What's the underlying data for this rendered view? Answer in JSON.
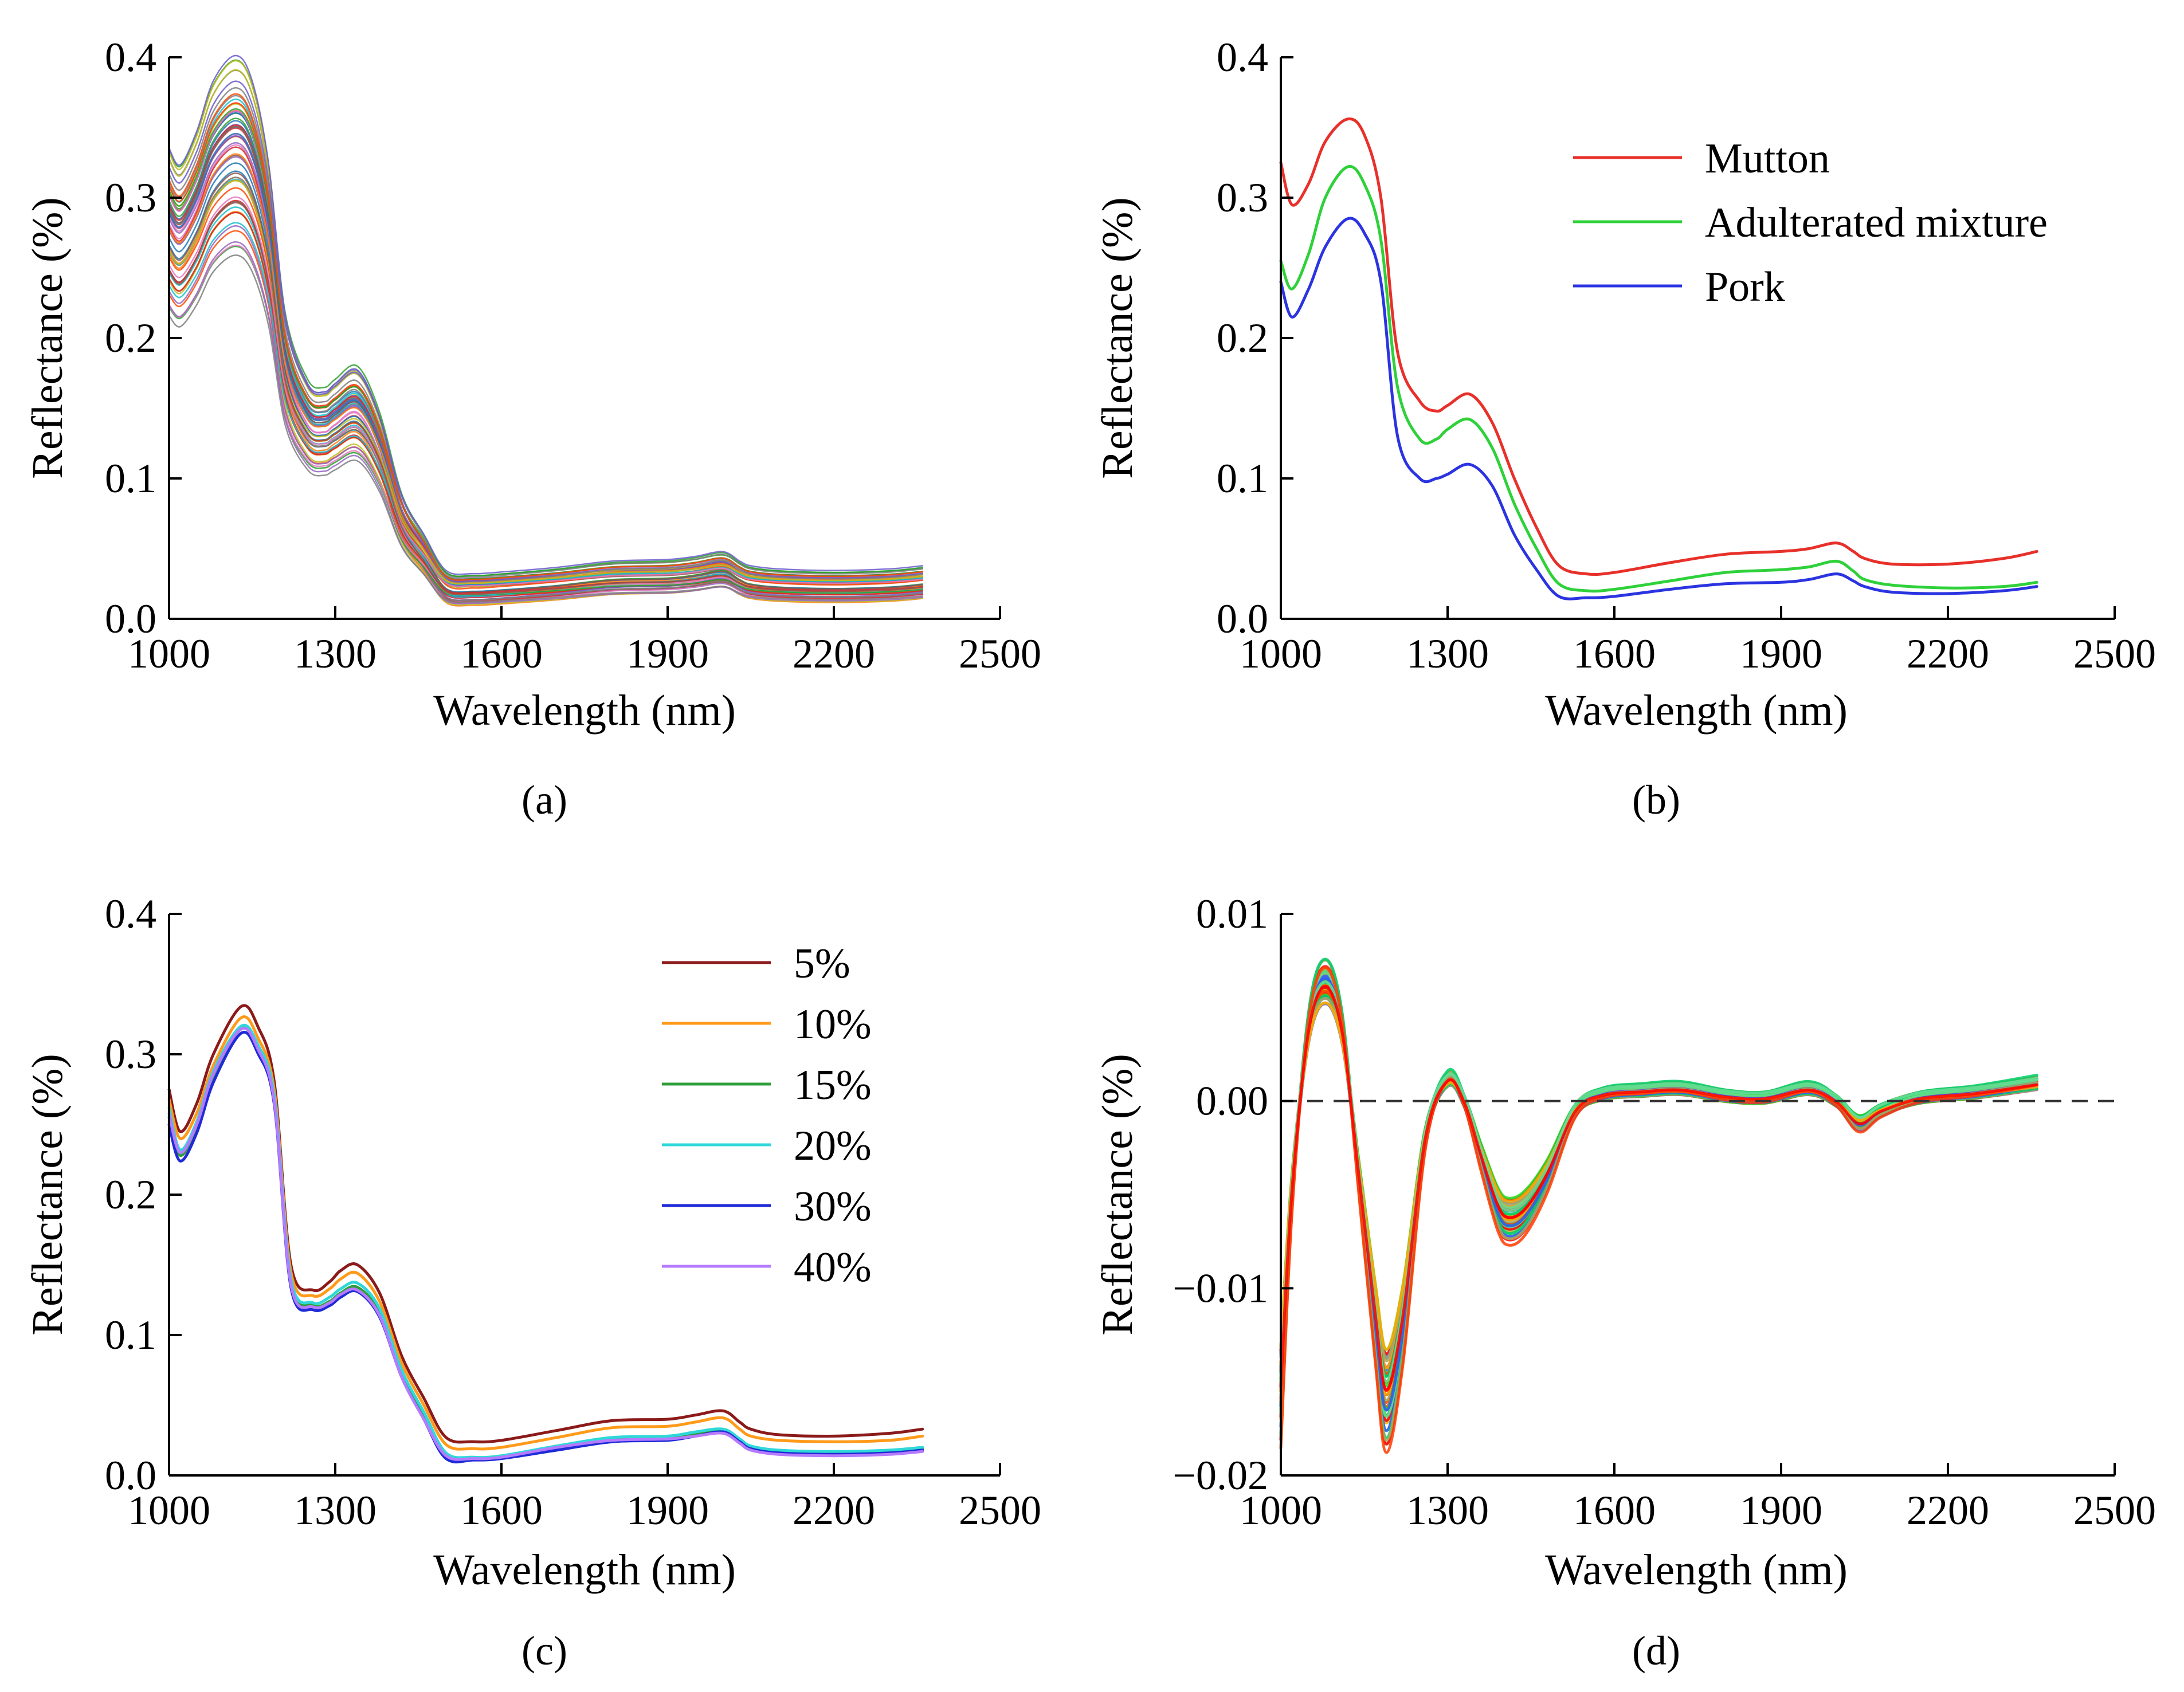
{
  "chart_data": [
    {
      "panel": "a",
      "type": "line",
      "caption": "(a)",
      "xlabel": "Wavelength (nm)",
      "ylabel": "Reflectance (%)",
      "xlim": [
        1000,
        2500
      ],
      "ylim": [
        0.0,
        0.4
      ],
      "xticks": [
        "1000",
        "1300",
        "1600",
        "1900",
        "2200",
        "2500"
      ],
      "yticks": [
        "0.0",
        "0.1",
        "0.2",
        "0.3",
        "0.4"
      ],
      "grid": false,
      "legend": "none",
      "description_colors": [
        "#d62728",
        "#2ca02c",
        "#1f77b4",
        "#17becf",
        "#9467bd",
        "#ff7f0e",
        "#bcbd22",
        "#e377c2",
        "#8c564b",
        "#7f7f7f",
        "#ff4500",
        "#6a5acd"
      ],
      "template": {
        "x": [
          1000,
          1020,
          1050,
          1080,
          1120,
          1150,
          1180,
          1210,
          1250,
          1280,
          1300,
          1340,
          1380,
          1420,
          1460,
          1500,
          1550,
          1600,
          1700,
          1800,
          1900,
          1950,
          2000,
          2030,
          2050,
          2100,
          2200,
          2300,
          2360
        ],
        "y": [
          0.28,
          0.27,
          0.29,
          0.32,
          0.335,
          0.32,
          0.27,
          0.18,
          0.14,
          0.135,
          0.14,
          0.148,
          0.12,
          0.07,
          0.045,
          0.022,
          0.02,
          0.021,
          0.024,
          0.028,
          0.029,
          0.031,
          0.034,
          0.028,
          0.025,
          0.023,
          0.022,
          0.023,
          0.025
        ]
      },
      "series_count": 60,
      "ensemble": "overlaid spectra of individual samples"
    },
    {
      "panel": "b",
      "type": "line",
      "caption": "(b)",
      "xlabel": "Wavelength (nm)",
      "ylabel": "Reflectance (%)",
      "xlim": [
        1000,
        2500
      ],
      "ylim": [
        0.0,
        0.4
      ],
      "xticks": [
        "1000",
        "1300",
        "1600",
        "1900",
        "2200",
        "2500"
      ],
      "yticks": [
        "0.0",
        "0.1",
        "0.2",
        "0.3",
        "0.4"
      ],
      "grid": false,
      "legend": "top-right",
      "x": [
        1000,
        1020,
        1050,
        1080,
        1120,
        1150,
        1180,
        1210,
        1250,
        1280,
        1300,
        1340,
        1380,
        1420,
        1460,
        1500,
        1550,
        1600,
        1700,
        1800,
        1900,
        1950,
        2000,
        2030,
        2050,
        2100,
        2200,
        2300,
        2360
      ],
      "series": [
        {
          "name": "Mutton",
          "color": "#e8302a",
          "values": [
            0.325,
            0.295,
            0.31,
            0.34,
            0.356,
            0.345,
            0.3,
            0.19,
            0.155,
            0.148,
            0.152,
            0.16,
            0.14,
            0.1,
            0.065,
            0.038,
            0.032,
            0.033,
            0.04,
            0.046,
            0.048,
            0.05,
            0.054,
            0.048,
            0.043,
            0.039,
            0.039,
            0.043,
            0.048
          ]
        },
        {
          "name": "Adulterated mixture",
          "color": "#2fd13a",
          "values": [
            0.255,
            0.235,
            0.26,
            0.3,
            0.322,
            0.31,
            0.27,
            0.165,
            0.128,
            0.128,
            0.135,
            0.142,
            0.122,
            0.082,
            0.05,
            0.025,
            0.02,
            0.021,
            0.027,
            0.033,
            0.035,
            0.037,
            0.041,
            0.034,
            0.028,
            0.024,
            0.022,
            0.023,
            0.026
          ]
        },
        {
          "name": "Pork",
          "color": "#2b34e0",
          "values": [
            0.24,
            0.215,
            0.235,
            0.265,
            0.285,
            0.275,
            0.24,
            0.13,
            0.1,
            0.1,
            0.103,
            0.11,
            0.095,
            0.06,
            0.035,
            0.016,
            0.015,
            0.016,
            0.021,
            0.025,
            0.026,
            0.028,
            0.032,
            0.027,
            0.023,
            0.019,
            0.018,
            0.02,
            0.023
          ]
        }
      ]
    },
    {
      "panel": "c",
      "type": "line",
      "caption": "(c)",
      "xlabel": "Wavelength (nm)",
      "ylabel": "Reflectance (%)",
      "xlim": [
        1000,
        2500
      ],
      "ylim": [
        0.0,
        0.4
      ],
      "xticks": [
        "1000",
        "1300",
        "1600",
        "1900",
        "2200",
        "2500"
      ],
      "yticks": [
        "0.0",
        "0.1",
        "0.2",
        "0.3",
        "0.4"
      ],
      "grid": false,
      "legend": "top-right",
      "x": [
        1000,
        1020,
        1050,
        1080,
        1130,
        1160,
        1190,
        1220,
        1260,
        1290,
        1310,
        1340,
        1380,
        1420,
        1460,
        1500,
        1550,
        1600,
        1700,
        1800,
        1900,
        1950,
        2000,
        2030,
        2050,
        2100,
        2200,
        2300,
        2360
      ],
      "series": [
        {
          "name": "5%",
          "color": "#8b1a1a",
          "values": [
            0.275,
            0.245,
            0.265,
            0.3,
            0.334,
            0.32,
            0.28,
            0.15,
            0.132,
            0.138,
            0.146,
            0.15,
            0.13,
            0.085,
            0.055,
            0.027,
            0.024,
            0.025,
            0.032,
            0.039,
            0.04,
            0.043,
            0.046,
            0.038,
            0.033,
            0.029,
            0.028,
            0.03,
            0.033
          ]
        },
        {
          "name": "10%",
          "color": "#ff9a1a",
          "values": [
            0.268,
            0.24,
            0.258,
            0.292,
            0.326,
            0.312,
            0.274,
            0.145,
            0.128,
            0.133,
            0.14,
            0.144,
            0.124,
            0.08,
            0.05,
            0.022,
            0.019,
            0.02,
            0.027,
            0.034,
            0.035,
            0.038,
            0.041,
            0.033,
            0.028,
            0.025,
            0.024,
            0.025,
            0.028
          ]
        },
        {
          "name": "15%",
          "color": "#2e9e3a",
          "values": [
            0.255,
            0.228,
            0.248,
            0.285,
            0.318,
            0.305,
            0.268,
            0.138,
            0.121,
            0.124,
            0.13,
            0.134,
            0.116,
            0.072,
            0.042,
            0.014,
            0.012,
            0.013,
            0.02,
            0.026,
            0.027,
            0.03,
            0.032,
            0.025,
            0.02,
            0.017,
            0.016,
            0.017,
            0.019
          ]
        },
        {
          "name": "20%",
          "color": "#2fd8d8",
          "values": [
            0.262,
            0.232,
            0.252,
            0.288,
            0.32,
            0.307,
            0.27,
            0.14,
            0.123,
            0.127,
            0.133,
            0.137,
            0.119,
            0.075,
            0.045,
            0.016,
            0.013,
            0.014,
            0.021,
            0.027,
            0.028,
            0.031,
            0.033,
            0.026,
            0.021,
            0.018,
            0.017,
            0.018,
            0.02
          ]
        },
        {
          "name": "30%",
          "color": "#1f2bd6",
          "values": [
            0.25,
            0.224,
            0.244,
            0.28,
            0.315,
            0.301,
            0.264,
            0.134,
            0.118,
            0.121,
            0.127,
            0.131,
            0.113,
            0.07,
            0.04,
            0.012,
            0.011,
            0.012,
            0.018,
            0.024,
            0.025,
            0.028,
            0.031,
            0.024,
            0.019,
            0.016,
            0.015,
            0.016,
            0.018
          ]
        },
        {
          "name": "40%",
          "color": "#b57bff",
          "values": [
            0.258,
            0.23,
            0.25,
            0.286,
            0.318,
            0.304,
            0.266,
            0.136,
            0.12,
            0.123,
            0.129,
            0.132,
            0.114,
            0.07,
            0.04,
            0.014,
            0.012,
            0.013,
            0.02,
            0.025,
            0.026,
            0.028,
            0.03,
            0.023,
            0.018,
            0.015,
            0.014,
            0.015,
            0.017
          ]
        }
      ]
    },
    {
      "panel": "d",
      "type": "line",
      "caption": "(d)",
      "xlabel": "Wavelength (nm)",
      "ylabel": "Reflectance (%)",
      "xlim": [
        1000,
        2500
      ],
      "ylim": [
        -0.02,
        0.01
      ],
      "xticks": [
        "1000",
        "1300",
        "1600",
        "1900",
        "2200",
        "2500"
      ],
      "yticks": [
        "−0.02",
        "−0.01",
        "0.00",
        "0.01"
      ],
      "ytick_values": [
        -0.02,
        -0.01,
        0.0,
        0.01
      ],
      "grid": false,
      "legend": "none",
      "reference_line": {
        "y": 0.0,
        "style": "dashed"
      },
      "template": {
        "x": [
          1000,
          1020,
          1050,
          1080,
          1110,
          1140,
          1170,
          1190,
          1220,
          1260,
          1300,
          1330,
          1360,
          1390,
          1410,
          1440,
          1480,
          1530,
          1580,
          1650,
          1720,
          1800,
          1870,
          1950,
          2000,
          2040,
          2080,
          2150,
          2250,
          2360
        ],
        "y": [
          -0.016,
          -0.005,
          0.004,
          0.0065,
          0.004,
          -0.004,
          -0.012,
          -0.0162,
          -0.012,
          -0.002,
          0.0012,
          0.0,
          -0.003,
          -0.0058,
          -0.0065,
          -0.006,
          -0.004,
          -0.0005,
          0.0004,
          0.0006,
          0.0007,
          0.0003,
          0.0002,
          0.0007,
          0.0,
          -0.0012,
          -0.0005,
          0.0002,
          0.0005,
          0.001
        ]
      },
      "series_count": 50,
      "description_colors": [
        "#ff3b00",
        "#ff0000",
        "#22dd22",
        "#00cc66",
        "#3355ff",
        "#a8a860",
        "#ffaa00",
        "#66dd99"
      ],
      "ensemble": "overlaid preprocessed spectra of individual samples"
    }
  ]
}
